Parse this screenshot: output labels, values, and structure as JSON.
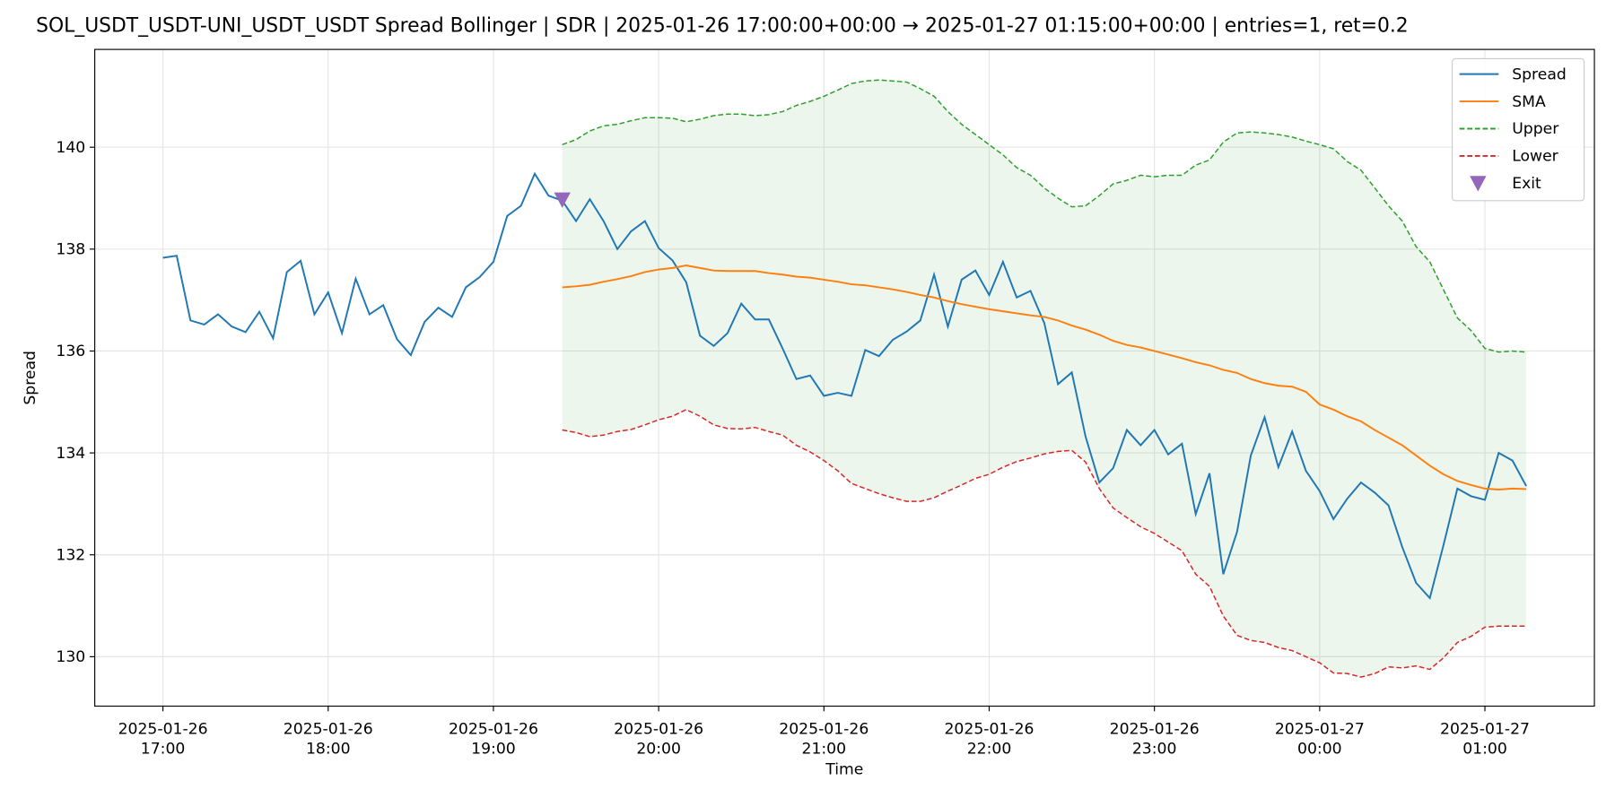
{
  "chart_data": {
    "type": "line",
    "title": "SOL_USDT_USDT-UNI_USDT_USDT Spread Bollinger  | SDR | 2025-01-26 17:00:00+00:00 → 2025-01-27 01:15:00+00:00 | entries=1, ret=0.2",
    "x_label": "Time",
    "y_label": "Spread",
    "x": [
      "2025-01-26 17:00",
      "2025-01-26 17:05",
      "2025-01-26 17:10",
      "2025-01-26 17:15",
      "2025-01-26 17:20",
      "2025-01-26 17:25",
      "2025-01-26 17:30",
      "2025-01-26 17:35",
      "2025-01-26 17:40",
      "2025-01-26 17:45",
      "2025-01-26 17:50",
      "2025-01-26 17:55",
      "2025-01-26 18:00",
      "2025-01-26 18:05",
      "2025-01-26 18:10",
      "2025-01-26 18:15",
      "2025-01-26 18:20",
      "2025-01-26 18:25",
      "2025-01-26 18:30",
      "2025-01-26 18:35",
      "2025-01-26 18:40",
      "2025-01-26 18:45",
      "2025-01-26 18:50",
      "2025-01-26 18:55",
      "2025-01-26 19:00",
      "2025-01-26 19:05",
      "2025-01-26 19:10",
      "2025-01-26 19:15",
      "2025-01-26 19:20",
      "2025-01-26 19:25",
      "2025-01-26 19:30",
      "2025-01-26 19:35",
      "2025-01-26 19:40",
      "2025-01-26 19:45",
      "2025-01-26 19:50",
      "2025-01-26 19:55",
      "2025-01-26 20:00",
      "2025-01-26 20:05",
      "2025-01-26 20:10",
      "2025-01-26 20:15",
      "2025-01-26 20:20",
      "2025-01-26 20:25",
      "2025-01-26 20:30",
      "2025-01-26 20:35",
      "2025-01-26 20:40",
      "2025-01-26 20:45",
      "2025-01-26 20:50",
      "2025-01-26 20:55",
      "2025-01-26 21:00",
      "2025-01-26 21:05",
      "2025-01-26 21:10",
      "2025-01-26 21:15",
      "2025-01-26 21:20",
      "2025-01-26 21:25",
      "2025-01-26 21:30",
      "2025-01-26 21:35",
      "2025-01-26 21:40",
      "2025-01-26 21:45",
      "2025-01-26 21:50",
      "2025-01-26 21:55",
      "2025-01-26 22:00",
      "2025-01-26 22:05",
      "2025-01-26 22:10",
      "2025-01-26 22:15",
      "2025-01-26 22:20",
      "2025-01-26 22:25",
      "2025-01-26 22:30",
      "2025-01-26 22:35",
      "2025-01-26 22:40",
      "2025-01-26 22:45",
      "2025-01-26 22:50",
      "2025-01-26 22:55",
      "2025-01-26 23:00",
      "2025-01-26 23:05",
      "2025-01-26 23:10",
      "2025-01-26 23:15",
      "2025-01-26 23:20",
      "2025-01-26 23:25",
      "2025-01-26 23:30",
      "2025-01-26 23:35",
      "2025-01-26 23:40",
      "2025-01-26 23:45",
      "2025-01-26 23:50",
      "2025-01-26 23:55",
      "2025-01-27 00:00",
      "2025-01-27 00:05",
      "2025-01-27 00:10",
      "2025-01-27 00:15",
      "2025-01-27 00:20",
      "2025-01-27 00:25",
      "2025-01-27 00:30",
      "2025-01-27 00:35",
      "2025-01-27 00:40",
      "2025-01-27 00:45",
      "2025-01-27 00:50",
      "2025-01-27 00:55",
      "2025-01-27 01:00",
      "2025-01-27 01:05",
      "2025-01-27 01:10",
      "2025-01-27 01:15"
    ],
    "series": [
      {
        "name": "Spread",
        "color": "#1f77b4",
        "style": "solid",
        "values": [
          137.83,
          137.87,
          136.6,
          136.52,
          136.72,
          136.48,
          136.37,
          136.77,
          136.25,
          137.55,
          137.77,
          136.72,
          137.15,
          136.35,
          137.42,
          136.72,
          136.9,
          136.23,
          135.92,
          136.57,
          136.85,
          136.67,
          137.25,
          137.45,
          137.75,
          138.65,
          138.85,
          139.48,
          139.05,
          138.95,
          138.55,
          138.98,
          138.55,
          138.0,
          138.35,
          138.55,
          138.02,
          137.78,
          137.35,
          136.3,
          136.1,
          136.35,
          136.93,
          136.62,
          136.62,
          136.05,
          135.45,
          135.52,
          135.12,
          135.18,
          135.12,
          136.02,
          135.9,
          136.22,
          136.38,
          136.6,
          137.5,
          136.48,
          137.4,
          137.58,
          137.1,
          137.75,
          137.05,
          137.18,
          136.55,
          135.35,
          135.58,
          134.32,
          133.42,
          133.7,
          134.45,
          134.15,
          134.45,
          133.97,
          134.18,
          132.8,
          133.6,
          131.62,
          132.45,
          133.95,
          134.7,
          133.72,
          134.42,
          133.65,
          133.25,
          132.7,
          133.1,
          133.42,
          133.22,
          132.97,
          132.15,
          131.45,
          131.15,
          132.2,
          133.3,
          133.15,
          133.08,
          134.0,
          133.85,
          133.35
        ]
      },
      {
        "name": "SMA",
        "color": "#ff7f0e",
        "style": "solid",
        "values": [
          null,
          null,
          null,
          null,
          null,
          null,
          null,
          null,
          null,
          null,
          null,
          null,
          null,
          null,
          null,
          null,
          null,
          null,
          null,
          null,
          null,
          null,
          null,
          null,
          null,
          null,
          null,
          null,
          null,
          137.25,
          137.27,
          137.3,
          137.36,
          137.41,
          137.47,
          137.55,
          137.6,
          137.63,
          137.68,
          137.63,
          137.58,
          137.57,
          137.57,
          137.57,
          137.53,
          137.5,
          137.46,
          137.44,
          137.4,
          137.36,
          137.31,
          137.29,
          137.25,
          137.21,
          137.16,
          137.1,
          137.05,
          136.98,
          136.92,
          136.87,
          136.82,
          136.78,
          136.74,
          136.7,
          136.67,
          136.6,
          136.5,
          136.42,
          136.32,
          136.2,
          136.12,
          136.07,
          136.0,
          135.93,
          135.86,
          135.78,
          135.72,
          135.63,
          135.57,
          135.45,
          135.37,
          135.32,
          135.3,
          135.2,
          134.95,
          134.85,
          134.72,
          134.62,
          134.45,
          134.3,
          134.15,
          133.95,
          133.75,
          133.58,
          133.45,
          133.37,
          133.3,
          133.28,
          133.3,
          133.29
        ]
      },
      {
        "name": "Upper",
        "color": "#2ca02c",
        "style": "dashed",
        "values": [
          null,
          null,
          null,
          null,
          null,
          null,
          null,
          null,
          null,
          null,
          null,
          null,
          null,
          null,
          null,
          null,
          null,
          null,
          null,
          null,
          null,
          null,
          null,
          null,
          null,
          null,
          null,
          null,
          null,
          140.05,
          140.15,
          140.32,
          140.42,
          140.45,
          140.52,
          140.58,
          140.58,
          140.57,
          140.5,
          140.55,
          140.62,
          140.65,
          140.65,
          140.62,
          140.64,
          140.7,
          140.82,
          140.9,
          141.0,
          141.12,
          141.25,
          141.3,
          141.32,
          141.3,
          141.28,
          141.15,
          141.0,
          140.7,
          140.45,
          140.25,
          140.05,
          139.85,
          139.6,
          139.45,
          139.2,
          139.0,
          138.83,
          138.85,
          139.05,
          139.28,
          139.35,
          139.45,
          139.42,
          139.45,
          139.45,
          139.65,
          139.75,
          140.1,
          140.28,
          140.3,
          140.28,
          140.25,
          140.2,
          140.12,
          140.05,
          139.97,
          139.72,
          139.55,
          139.2,
          138.85,
          138.55,
          138.05,
          137.75,
          137.2,
          136.65,
          136.4,
          136.05,
          135.98,
          136.0,
          135.98
        ]
      },
      {
        "name": "Lower",
        "color": "#d62728",
        "style": "dashed",
        "values": [
          null,
          null,
          null,
          null,
          null,
          null,
          null,
          null,
          null,
          null,
          null,
          null,
          null,
          null,
          null,
          null,
          null,
          null,
          null,
          null,
          null,
          null,
          null,
          null,
          null,
          null,
          null,
          null,
          null,
          134.45,
          134.4,
          134.32,
          134.35,
          134.42,
          134.46,
          134.55,
          134.65,
          134.72,
          134.85,
          134.72,
          134.55,
          134.48,
          134.47,
          134.5,
          134.42,
          134.35,
          134.15,
          134.02,
          133.85,
          133.65,
          133.4,
          133.3,
          133.2,
          133.12,
          133.05,
          133.05,
          133.12,
          133.25,
          133.37,
          133.5,
          133.58,
          133.72,
          133.83,
          133.9,
          133.98,
          134.03,
          134.05,
          133.82,
          133.3,
          132.92,
          132.73,
          132.55,
          132.42,
          132.25,
          132.08,
          131.62,
          131.38,
          130.8,
          130.42,
          130.32,
          130.28,
          130.18,
          130.12,
          130.0,
          129.88,
          129.68,
          129.67,
          129.6,
          129.67,
          129.8,
          129.78,
          129.82,
          129.75,
          129.98,
          130.28,
          130.4,
          130.58,
          130.6,
          130.6,
          130.6
        ]
      },
      {
        "name": "Exit",
        "color": "#9467bd",
        "style": "marker",
        "x": [
          "2025-01-26 19:25"
        ],
        "values": [
          138.95
        ]
      }
    ],
    "band_color": "#2ca02c",
    "xlim": [
      "2025-01-26 16:35:15",
      "2025-01-27 01:39:45"
    ],
    "xticks": [
      "2025-01-26 17:00",
      "2025-01-26 18:00",
      "2025-01-26 19:00",
      "2025-01-26 20:00",
      "2025-01-26 21:00",
      "2025-01-26 22:00",
      "2025-01-26 23:00",
      "2025-01-27 00:00",
      "2025-01-27 01:00"
    ],
    "ylim": [
      129.03,
      141.92
    ],
    "yticks": [
      130,
      132,
      134,
      136,
      138,
      140
    ],
    "grid": true,
    "legend": "upper right"
  }
}
